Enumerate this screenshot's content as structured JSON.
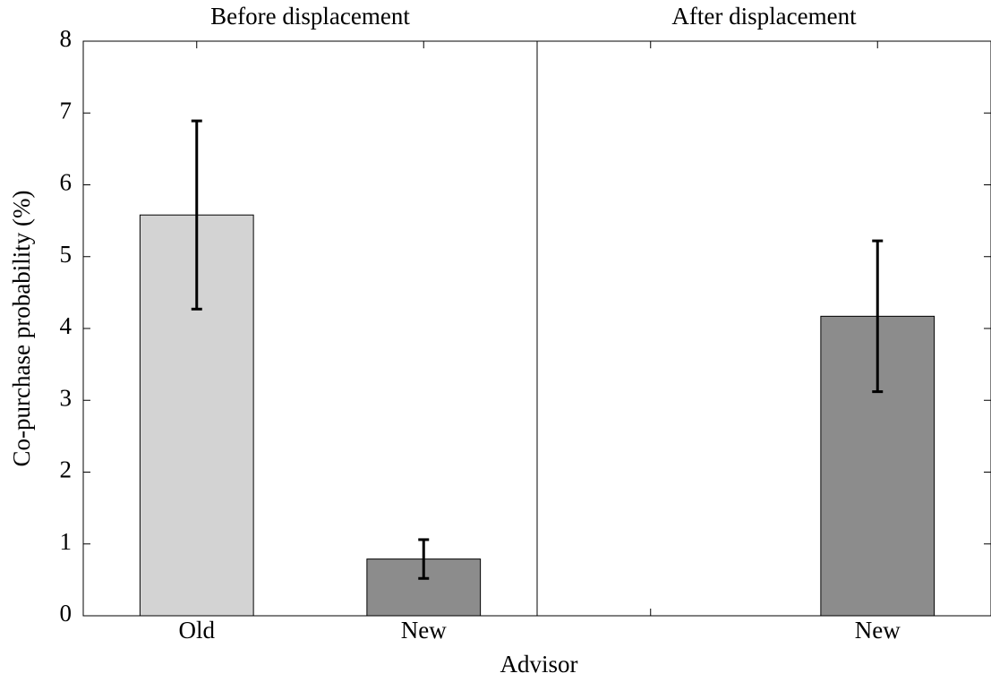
{
  "chart_data": {
    "type": "bar",
    "ylabel": "Co-purchase probability (%)",
    "xlabel": "Advisor",
    "ylim": [
      0,
      8
    ],
    "yticks": [
      0,
      1,
      2,
      3,
      4,
      5,
      6,
      7,
      8
    ],
    "panels": [
      {
        "title": "Before displacement",
        "categories": [
          "Old",
          "New"
        ],
        "values": [
          5.58,
          0.79
        ],
        "errors": [
          1.31,
          0.27
        ],
        "colors": [
          "#d3d3d3",
          "#8c8c8c"
        ]
      },
      {
        "title": "After displacement",
        "categories": [
          null,
          "New"
        ],
        "values": [
          null,
          4.17
        ],
        "errors": [
          null,
          1.05
        ],
        "colors": [
          null,
          "#8c8c8c"
        ]
      }
    ]
  }
}
